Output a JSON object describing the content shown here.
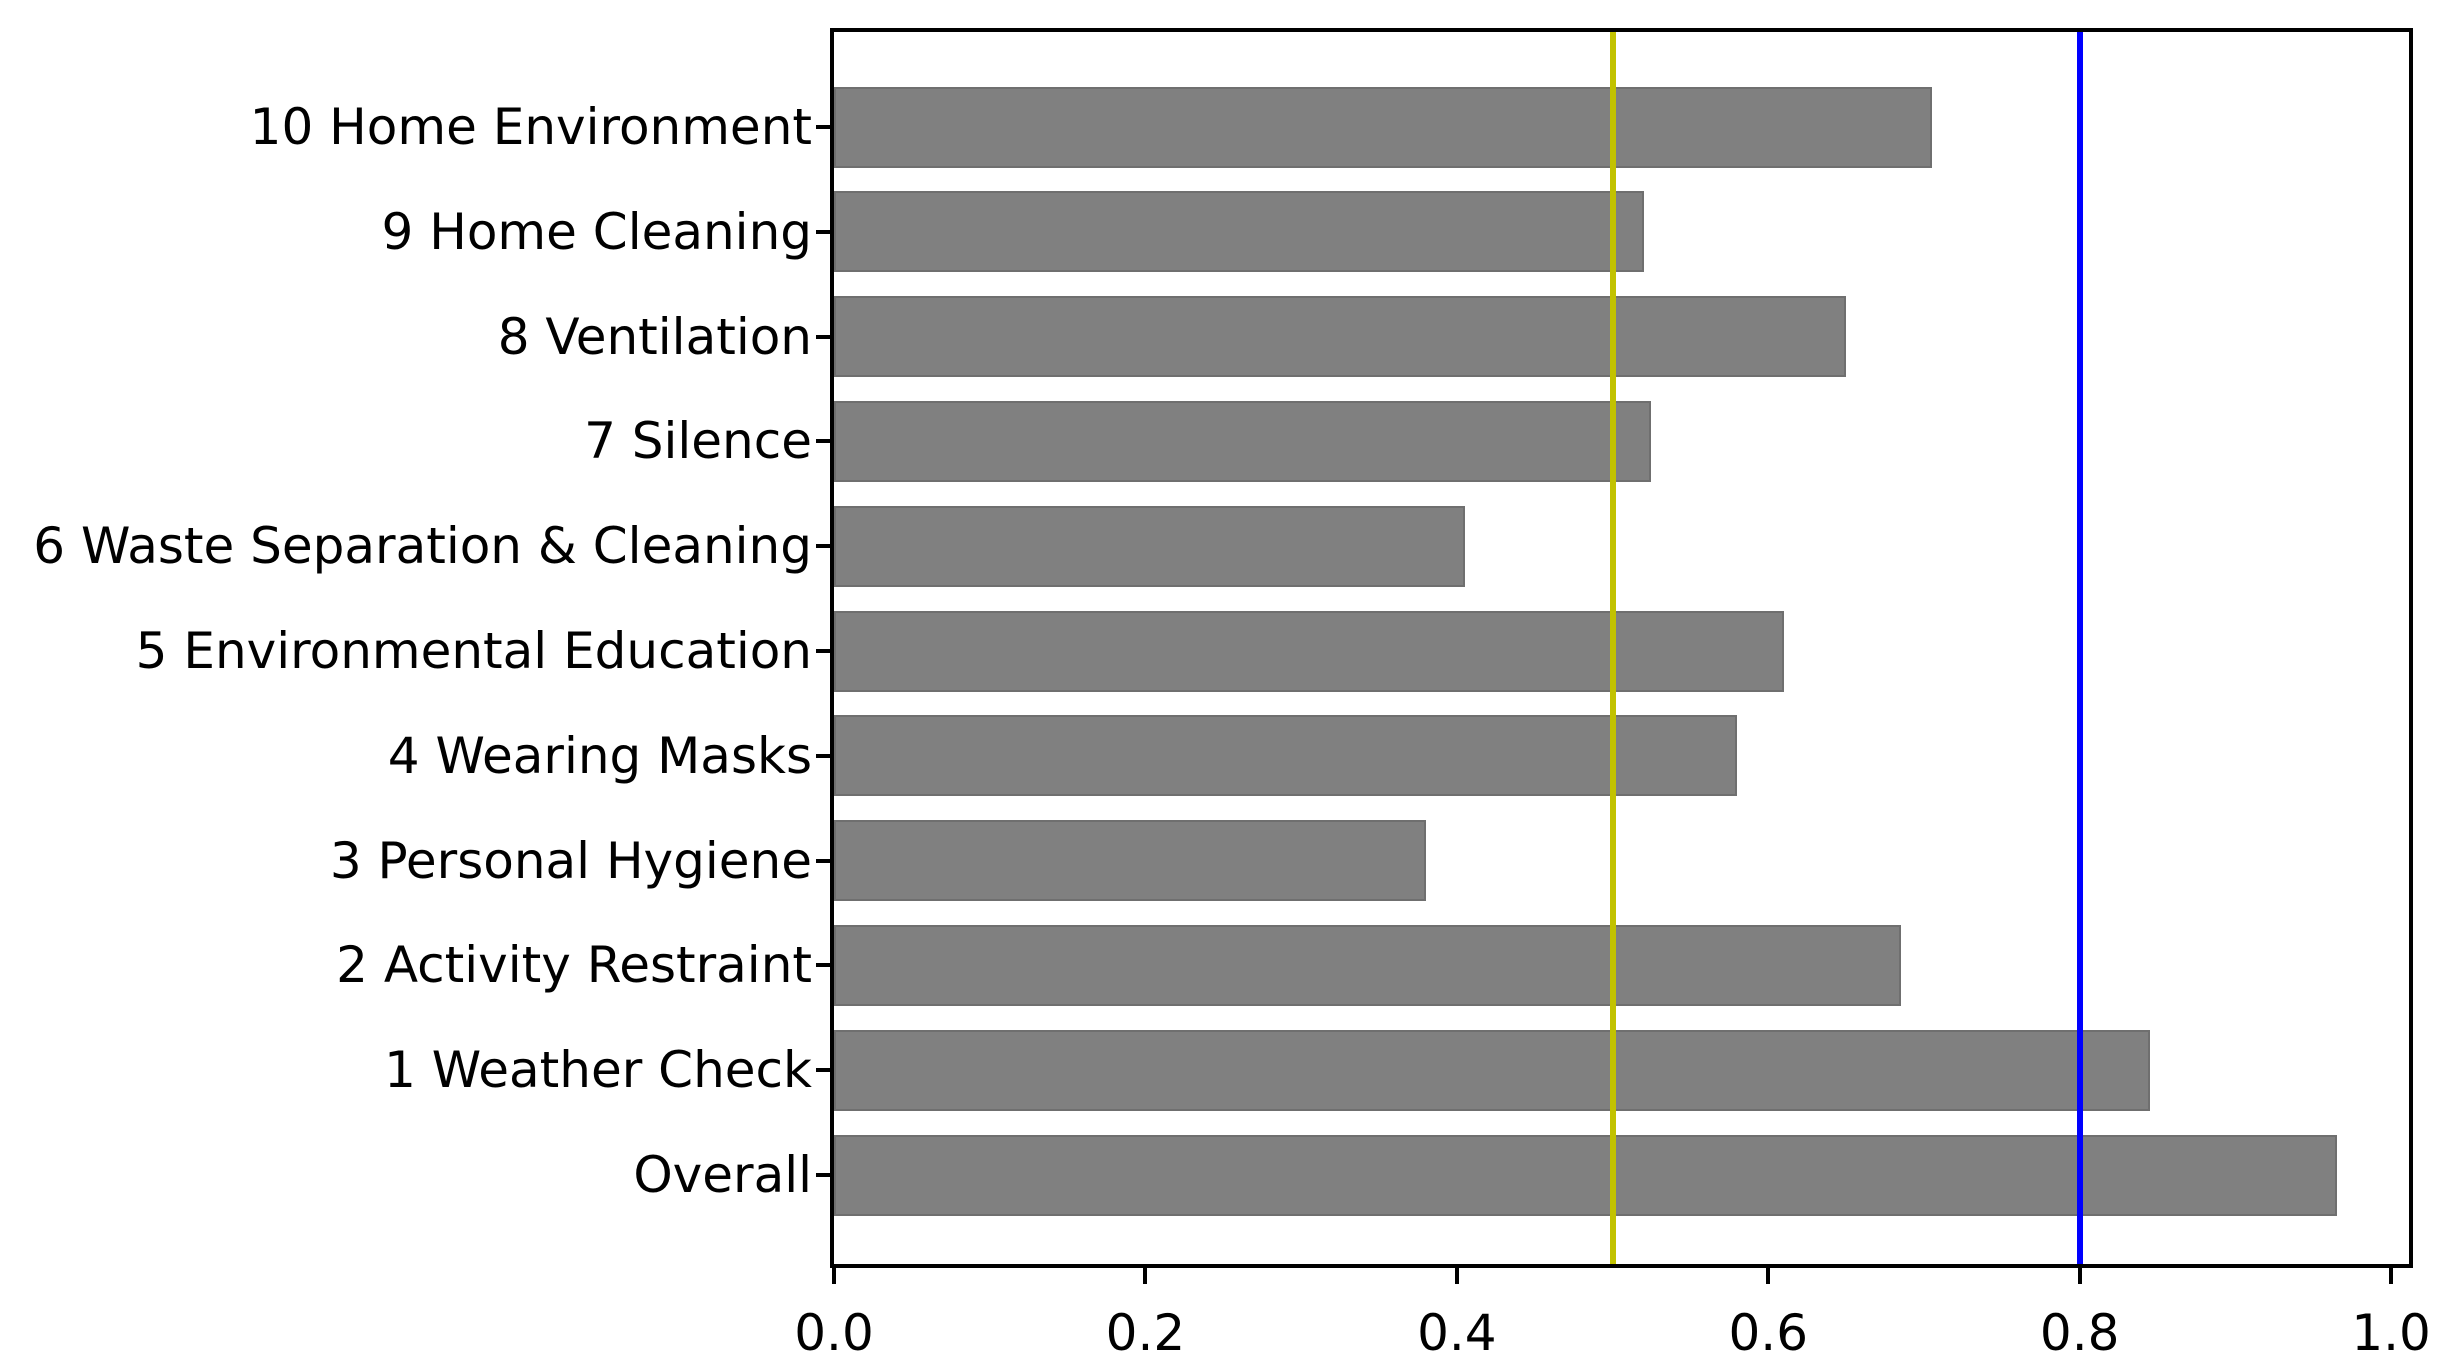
{
  "chart_data": {
    "type": "bar",
    "orientation": "horizontal",
    "title": "",
    "xlabel": "",
    "ylabel": "",
    "categories": [
      "10 Home Environment",
      "9 Home Cleaning",
      "8 Ventilation",
      "7 Silence",
      "6 Waste Separation & Cleaning",
      "5 Environmental Education",
      "4 Wearing Masks",
      "3 Personal Hygiene",
      "2 Activity Restraint",
      "1 Weather Check",
      "Overall"
    ],
    "values": [
      0.705,
      0.52,
      0.65,
      0.525,
      0.405,
      0.61,
      0.58,
      0.38,
      0.685,
      0.845,
      0.965
    ],
    "xlim": [
      0.0,
      1.01
    ],
    "xticks": [
      {
        "value": 0.0,
        "label": "0.0"
      },
      {
        "value": 0.2,
        "label": "0.2"
      },
      {
        "value": 0.4,
        "label": "0.4"
      },
      {
        "value": 0.6,
        "label": "0.6"
      },
      {
        "value": 0.8,
        "label": "0.8"
      },
      {
        "value": 1.0,
        "label": "1.0"
      }
    ],
    "grid": false,
    "legend": null,
    "bar_color": "#808080",
    "bar_edge_color": "#6f6f6f",
    "axis_color": "#000000",
    "reference_lines": [
      {
        "value": 0.5,
        "color": "#c2c200",
        "name": "reference-line-yellow-0.5"
      },
      {
        "value": 0.8,
        "color": "#0000ff",
        "name": "reference-line-blue-0.8"
      }
    ]
  }
}
